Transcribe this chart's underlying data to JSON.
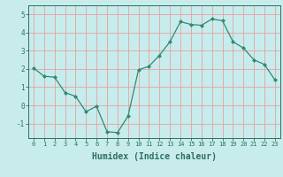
{
  "x": [
    0,
    1,
    2,
    3,
    4,
    5,
    6,
    7,
    8,
    9,
    10,
    11,
    12,
    13,
    14,
    15,
    16,
    17,
    18,
    19,
    20,
    21,
    22,
    23
  ],
  "y": [
    2.05,
    1.6,
    1.55,
    0.7,
    0.5,
    -0.35,
    -0.05,
    -1.45,
    -1.5,
    -0.6,
    1.95,
    2.15,
    2.75,
    3.5,
    4.6,
    4.45,
    4.4,
    4.75,
    4.65,
    3.5,
    3.15,
    2.5,
    2.25,
    1.4
  ],
  "line_color": "#2e8b72",
  "marker": "D",
  "marker_size": 2,
  "bg_color": "#c8ecec",
  "grid_color": "#e8a0a0",
  "xlabel": "Humidex (Indice chaleur)",
  "ylim": [
    -1.8,
    5.5
  ],
  "xlim": [
    -0.5,
    23.5
  ],
  "yticks": [
    -1,
    0,
    1,
    2,
    3,
    4,
    5
  ],
  "xticks": [
    0,
    1,
    2,
    3,
    4,
    5,
    6,
    7,
    8,
    9,
    10,
    11,
    12,
    13,
    14,
    15,
    16,
    17,
    18,
    19,
    20,
    21,
    22,
    23
  ],
  "tick_color": "#2e6e60",
  "label_fontsize": 7,
  "tick_fontsize": 5
}
